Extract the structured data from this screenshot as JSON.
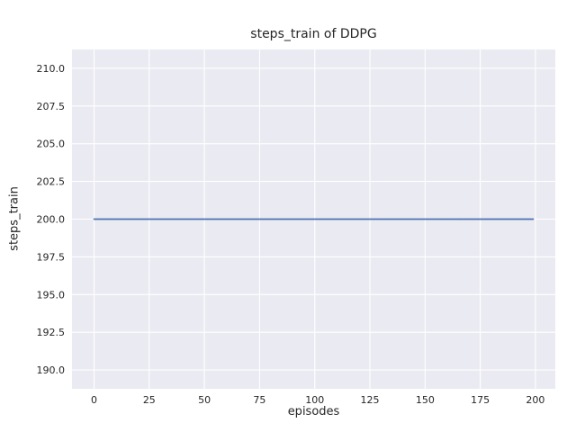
{
  "chart_data": {
    "type": "line",
    "title": "steps_train of DDPG",
    "xlabel": "episodes",
    "ylabel": "steps_train",
    "xlim": [
      -10,
      209
    ],
    "ylim": [
      188.75,
      211.25
    ],
    "xticks": [
      0,
      25,
      50,
      75,
      100,
      125,
      150,
      175,
      200
    ],
    "xtick_labels": [
      "0",
      "25",
      "50",
      "75",
      "100",
      "125",
      "150",
      "175",
      "200"
    ],
    "yticks": [
      190.0,
      192.5,
      195.0,
      197.5,
      200.0,
      202.5,
      205.0,
      207.5,
      210.0
    ],
    "ytick_labels": [
      "190.0",
      "192.5",
      "195.0",
      "197.5",
      "200.0",
      "202.5",
      "205.0",
      "207.5",
      "210.0"
    ],
    "grid": true,
    "legend_position": "none",
    "series": [
      {
        "name": "steps_train (DDPG)",
        "x": [
          0,
          199
        ],
        "y": [
          200,
          200
        ],
        "color": "#4c72b0"
      }
    ],
    "colors": {
      "figure_background": "#ffffff",
      "axes_background": "#eaeaf2",
      "grid": "#ffffff",
      "text": "#262626",
      "line": "#4c72b0"
    }
  }
}
